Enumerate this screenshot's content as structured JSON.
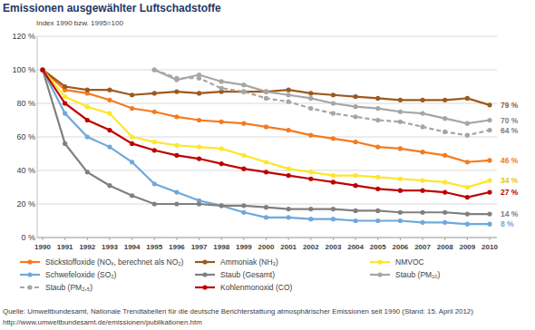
{
  "chart_data": {
    "type": "line",
    "title": "Emissionen ausgewählter Luftschadstoffe",
    "subtitle": "Index 1990 bzw. 1995=100",
    "source": "Quelle: Umweltbundesamt, Nationale Trendtabellen für die deutsche Berichterstattung atmosphärischer Emissionen seit 1990 (Stand: 15. April 2012)",
    "source_url": "http://www.umweltbundesamt.de/emissionen/publikationen.htm",
    "x": [
      1990,
      1991,
      1992,
      1993,
      1994,
      1995,
      1996,
      1997,
      1998,
      1999,
      2000,
      2001,
      2002,
      2003,
      2004,
      2005,
      2006,
      2007,
      2008,
      2009,
      2010
    ],
    "xlim": [
      1990,
      2010
    ],
    "xticks": [
      1990,
      1991,
      1992,
      1993,
      1994,
      1995,
      1996,
      1997,
      1998,
      1999,
      2000,
      2001,
      2002,
      2003,
      2004,
      2005,
      2006,
      2007,
      2008,
      2009,
      2010
    ],
    "ylim": [
      0,
      120
    ],
    "yticks": [
      {
        "value": 0,
        "label": "0 %"
      },
      {
        "value": 20,
        "label": "20 %"
      },
      {
        "value": 40,
        "label": "40 %"
      },
      {
        "value": 60,
        "label": "60 %"
      },
      {
        "value": 80,
        "label": "80 %"
      },
      {
        "value": 100,
        "label": "100 %"
      },
      {
        "value": 120,
        "label": "120 %"
      }
    ],
    "grid": true,
    "legend": "bottom",
    "series": [
      {
        "name": "Stickstoffoxide (NOₓ, berechnet als NO₂)",
        "color": "#f47b20",
        "marker": "circle",
        "line_style": "solid",
        "values": [
          100,
          88,
          86,
          82,
          77,
          75,
          72,
          70,
          69,
          68,
          66,
          64,
          61,
          59,
          57,
          54,
          53,
          51,
          49,
          45,
          46
        ]
      },
      {
        "name": "Ammoniak (NH₃)",
        "color": "#9c5a1e",
        "marker": "circle",
        "line_style": "solid",
        "values": [
          100,
          90,
          88,
          88,
          85,
          86,
          87,
          86,
          87,
          87,
          87,
          88,
          86,
          85,
          84,
          83,
          82,
          82,
          82,
          83,
          79
        ]
      },
      {
        "name": "NMVOC",
        "color": "#ffe629",
        "marker": "circle",
        "line_style": "solid",
        "values": [
          100,
          84,
          78,
          74,
          60,
          57,
          55,
          54,
          53,
          49,
          45,
          41,
          39,
          37,
          37,
          36,
          35,
          34,
          33,
          30,
          34
        ]
      },
      {
        "name": "Schwefeloxide (SO₂)",
        "color": "#6fa8dc",
        "marker": "circle",
        "line_style": "solid",
        "values": [
          100,
          74,
          60,
          54,
          45,
          32,
          27,
          22,
          19,
          15,
          12,
          12,
          11,
          11,
          10,
          10,
          10,
          9,
          9,
          8,
          8
        ]
      },
      {
        "name": "Staub (Gesamt)",
        "color": "#808080",
        "marker": "circle",
        "line_style": "solid",
        "values": [
          100,
          56,
          39,
          31,
          25,
          20,
          20,
          20,
          19,
          19,
          18,
          17,
          17,
          17,
          16,
          16,
          15,
          15,
          15,
          14,
          14
        ]
      },
      {
        "name": "Staub (PM₁₀)",
        "color": "#a6a6a6",
        "marker": "circle",
        "line_style": "solid",
        "values": [
          null,
          null,
          null,
          null,
          null,
          100,
          94,
          97,
          93,
          91,
          87,
          85,
          83,
          80,
          78,
          77,
          75,
          74,
          71,
          68,
          70
        ]
      },
      {
        "name": "Staub (PM₂,₅)",
        "color": "#a6a6a6",
        "marker": "circle",
        "line_style": "dashed",
        "values": [
          null,
          null,
          null,
          null,
          null,
          100,
          95,
          95,
          89,
          87,
          83,
          81,
          77,
          74,
          72,
          70,
          69,
          66,
          63,
          61,
          64
        ]
      },
      {
        "name": "Kohlenmonoxid (CO)",
        "color": "#c00000",
        "marker": "circle",
        "line_style": "solid",
        "values": [
          100,
          80,
          70,
          64,
          56,
          52,
          49,
          47,
          44,
          41,
          39,
          37,
          35,
          33,
          31,
          29,
          28,
          28,
          27,
          24,
          27
        ]
      }
    ],
    "annotations": [
      {
        "label": "79 %",
        "value": 79,
        "color": "#9c5a1e"
      },
      {
        "label": "70 %",
        "value": 70,
        "color": "#808080"
      },
      {
        "label": "64 %",
        "value": 64,
        "color": "#808080"
      },
      {
        "label": "46 %",
        "value": 46,
        "color": "#f47b20"
      },
      {
        "label": "34 %",
        "value": 34,
        "color": "#e6c800"
      },
      {
        "label": "27 %",
        "value": 27,
        "color": "#c00000"
      },
      {
        "label": "14 %",
        "value": 14,
        "color": "#808080"
      },
      {
        "label": "8 %",
        "value": 8,
        "color": "#6fa8dc"
      }
    ]
  }
}
